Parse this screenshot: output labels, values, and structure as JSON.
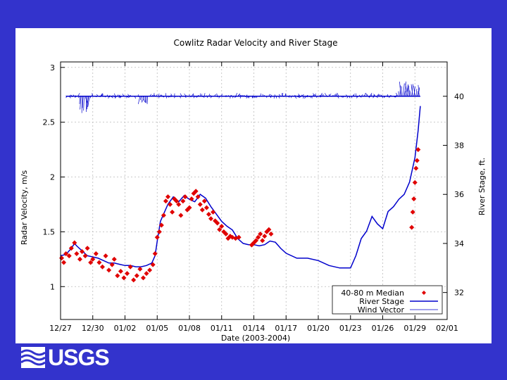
{
  "chart_data": {
    "type": "line",
    "title": "Cowlitz Radar Velocity and River Stage",
    "xlabel": "Date (2003-2004)",
    "ylabel": "Radar Velocity, m/s",
    "y2label": "River Stage, ft.",
    "xlim": [
      0,
      36
    ],
    "ylim": [
      0.7,
      3.05
    ],
    "y2lim": [
      30.9,
      41.4
    ],
    "x_ticks": [
      {
        "x": 0,
        "label": "12/27"
      },
      {
        "x": 3,
        "label": "12/30"
      },
      {
        "x": 6,
        "label": "01/02"
      },
      {
        "x": 9,
        "label": "01/05"
      },
      {
        "x": 12,
        "label": "01/08"
      },
      {
        "x": 15,
        "label": "01/11"
      },
      {
        "x": 18,
        "label": "01/14"
      },
      {
        "x": 21,
        "label": "01/17"
      },
      {
        "x": 24,
        "label": "01/20"
      },
      {
        "x": 27,
        "label": "01/23"
      },
      {
        "x": 30,
        "label": "01/26"
      },
      {
        "x": 33,
        "label": "01/29"
      },
      {
        "x": 36,
        "label": "02/01"
      }
    ],
    "y_ticks": [
      1,
      1.5,
      2,
      2.5,
      3
    ],
    "y_tick_labels": [
      "1",
      "1.5",
      "2",
      "2.5",
      "3"
    ],
    "y2_ticks": [
      32,
      34,
      36,
      38,
      40
    ],
    "y2_tick_labels": [
      "32",
      "34",
      "36",
      "38",
      "40"
    ],
    "grid": true,
    "legend_position": "bottom-right",
    "series": [
      {
        "name": "40-80 m Median",
        "style": "markers",
        "color": "#e00000",
        "axis": "left",
        "x": [
          0.1,
          0.3,
          0.5,
          0.8,
          1.0,
          1.3,
          1.5,
          1.8,
          2.0,
          2.3,
          2.5,
          2.8,
          3.0,
          3.3,
          3.6,
          3.9,
          4.2,
          4.5,
          4.8,
          5.0,
          5.3,
          5.6,
          5.9,
          6.2,
          6.5,
          6.8,
          7.1,
          7.4,
          7.7,
          8.0,
          8.3,
          8.6,
          8.8,
          9.0,
          9.2,
          9.4,
          9.6,
          9.8,
          10.0,
          10.2,
          10.4,
          10.6,
          10.8,
          11.0,
          11.2,
          11.4,
          11.6,
          11.8,
          12.0,
          12.2,
          12.4,
          12.6,
          12.8,
          13.0,
          13.2,
          13.4,
          13.6,
          13.8,
          14.0,
          14.2,
          14.4,
          14.6,
          14.8,
          15.0,
          15.2,
          15.4,
          15.6,
          15.8,
          16.0,
          16.3,
          16.6,
          17.8,
          18.0,
          18.2,
          18.4,
          18.6,
          18.8,
          19.0,
          19.2,
          19.4,
          19.6,
          32.7,
          32.8,
          32.9,
          33.0,
          33.1,
          33.2,
          33.3
        ],
        "y": [
          1.26,
          1.22,
          1.3,
          1.28,
          1.35,
          1.4,
          1.3,
          1.25,
          1.32,
          1.28,
          1.35,
          1.22,
          1.25,
          1.3,
          1.22,
          1.18,
          1.28,
          1.15,
          1.2,
          1.25,
          1.1,
          1.14,
          1.08,
          1.12,
          1.18,
          1.06,
          1.1,
          1.16,
          1.08,
          1.12,
          1.15,
          1.2,
          1.3,
          1.45,
          1.5,
          1.56,
          1.65,
          1.78,
          1.82,
          1.75,
          1.68,
          1.8,
          1.78,
          1.75,
          1.65,
          1.78,
          1.82,
          1.7,
          1.72,
          1.8,
          1.85,
          1.87,
          1.82,
          1.75,
          1.7,
          1.78,
          1.72,
          1.66,
          1.62,
          1.68,
          1.6,
          1.58,
          1.52,
          1.55,
          1.5,
          1.48,
          1.44,
          1.46,
          1.45,
          1.44,
          1.45,
          1.38,
          1.4,
          1.42,
          1.45,
          1.48,
          1.42,
          1.46,
          1.5,
          1.52,
          1.48,
          1.54,
          1.68,
          1.8,
          1.95,
          2.08,
          2.15,
          2.25
        ]
      },
      {
        "name": "River Stage",
        "style": "line",
        "color": "#0000cc",
        "axis": "right",
        "x": [
          0,
          0.5,
          1.0,
          1.3,
          1.5,
          2.0,
          2.5,
          3.0,
          3.5,
          4.0,
          4.5,
          5.0,
          5.5,
          6.0,
          6.5,
          7.0,
          7.5,
          8.0,
          8.5,
          8.8,
          9.0,
          9.3,
          9.6,
          10.0,
          10.5,
          11.0,
          11.5,
          12.0,
          12.5,
          13.0,
          13.5,
          14.0,
          14.5,
          15.0,
          15.5,
          16.0,
          16.5,
          17.0,
          17.5,
          18.0,
          18.5,
          19.0,
          19.5,
          20.0,
          20.5,
          21.0,
          22.0,
          23.0,
          24.0,
          25.0,
          26.0,
          26.5,
          27.0,
          27.5,
          28.0,
          28.5,
          29.0,
          29.5,
          30.0,
          30.5,
          31.0,
          31.5,
          32.0,
          32.5,
          33.0,
          33.3,
          33.5
        ],
        "y": [
          33.5,
          33.55,
          33.8,
          34.0,
          33.9,
          33.7,
          33.5,
          33.45,
          33.4,
          33.3,
          33.2,
          33.2,
          33.15,
          33.1,
          33.1,
          33.05,
          33.05,
          33.1,
          33.2,
          33.5,
          34.1,
          34.9,
          35.2,
          35.6,
          35.9,
          35.7,
          35.95,
          35.8,
          35.7,
          36.0,
          35.85,
          35.5,
          35.2,
          34.9,
          34.7,
          34.55,
          34.2,
          34.0,
          33.95,
          33.95,
          33.9,
          33.95,
          34.1,
          34.05,
          33.8,
          33.6,
          33.4,
          33.4,
          33.3,
          33.1,
          33.0,
          33.0,
          33.0,
          33.5,
          34.2,
          34.5,
          35.1,
          34.8,
          34.6,
          35.3,
          35.5,
          35.8,
          36.0,
          36.5,
          37.5,
          38.6,
          39.6
        ]
      },
      {
        "name": "Wind Vector",
        "style": "vectors",
        "color": "#0000cc",
        "axis": "right",
        "baseline": 40.0
      }
    ]
  },
  "logo": {
    "text": "USGS"
  }
}
